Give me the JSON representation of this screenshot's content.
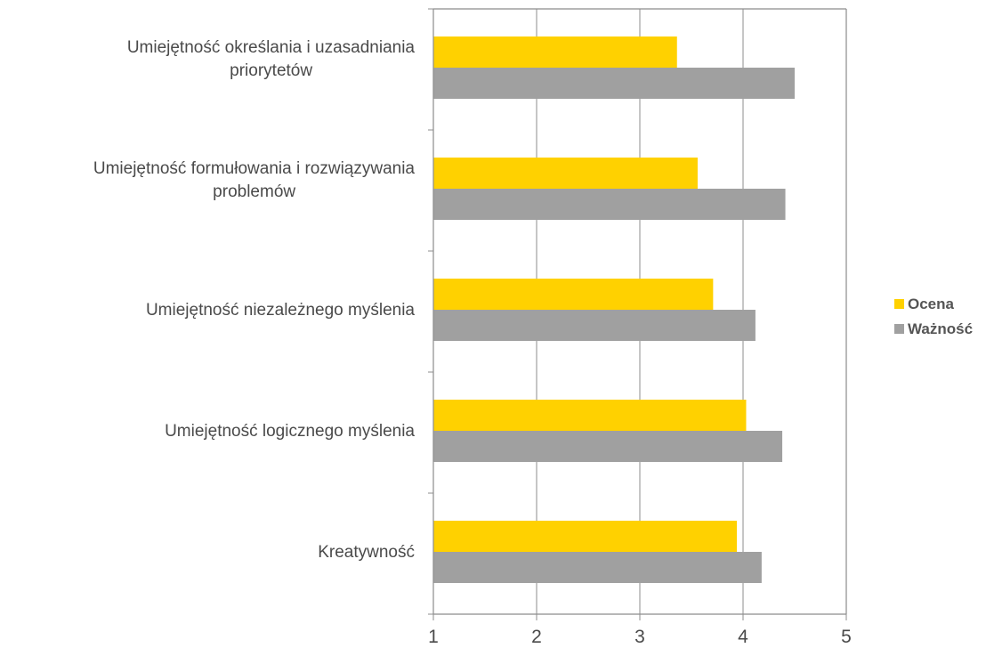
{
  "chart_data": {
    "type": "bar",
    "orientation": "horizontal",
    "categories": [
      [
        "Umiejętność określania i uzasadniania",
        "priorytetów"
      ],
      [
        "Umiejętność formułowania i rozwiązywania",
        "problemów"
      ],
      [
        "Umiejętność niezależnego myślenia"
      ],
      [
        "Umiejętność logicznego myślenia"
      ],
      [
        "Kreatywność"
      ]
    ],
    "series": [
      {
        "name": "Ocena",
        "color": "#FFD100",
        "values": [
          3.36,
          3.56,
          3.71,
          4.03,
          3.94
        ]
      },
      {
        "name": "Ważność",
        "color": "#A0A0A0",
        "values": [
          4.5,
          4.41,
          4.12,
          4.38,
          4.18
        ]
      }
    ],
    "xlim": [
      1,
      5
    ],
    "xticks": [
      "1",
      "2",
      "3",
      "4",
      "5"
    ],
    "grid": "vertical",
    "legend": "right",
    "title": "",
    "xlabel": "",
    "ylabel": ""
  }
}
